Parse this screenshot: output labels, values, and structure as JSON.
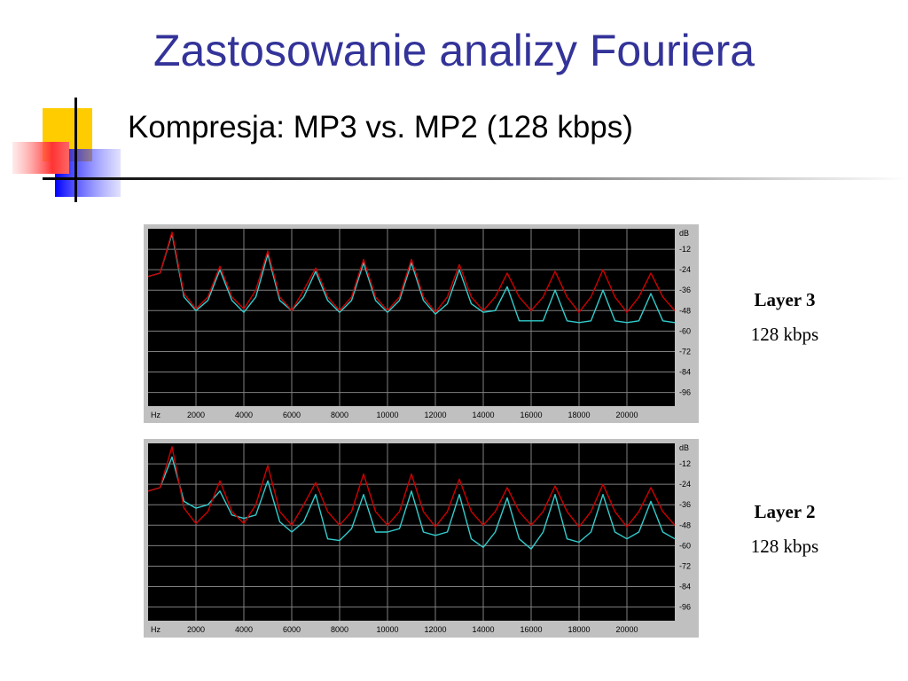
{
  "slide": {
    "title": "Zastosowanie analizy Fouriera",
    "subtitle": "Kompresja: MP3 vs. MP2 (128 kbps)"
  },
  "colors": {
    "title": "#333399",
    "plot_background": "#000000",
    "grid": "#808080",
    "series_original": "#cc0000",
    "series_compressed": "#33cccc",
    "frame": "#c0c0c0"
  },
  "chart_data": [
    {
      "type": "line",
      "layer_label": "Layer 3",
      "bitrate_label": "128 kbps",
      "x_unit_label": "Hz",
      "y_unit_label": "dB",
      "x_ticks": [
        2000,
        4000,
        6000,
        8000,
        10000,
        12000,
        14000,
        16000,
        18000,
        20000
      ],
      "y_ticks": [
        -12,
        -24,
        -36,
        -48,
        -60,
        -72,
        -84,
        -96
      ],
      "xlim": [
        0,
        22000
      ],
      "ylim": [
        -104,
        0
      ],
      "grid": true,
      "series": [
        {
          "x": [
            0,
            500,
            1000,
            1500,
            2000,
            2500,
            3000,
            3500,
            4000,
            4500,
            5000,
            5500,
            6000,
            6500,
            7000,
            7500,
            8000,
            8500,
            9000,
            9500,
            10000,
            10500,
            11000,
            11500,
            12000,
            12500,
            13000,
            13500,
            14000,
            14500,
            15000,
            15500,
            16000,
            16500,
            17000,
            17500,
            18000,
            18500,
            19000,
            19500,
            20000,
            20500,
            21000,
            21500,
            22000
          ],
          "y": [
            -28,
            -26,
            -2,
            -38,
            -47,
            -40,
            -22,
            -40,
            -47,
            -36,
            -13,
            -40,
            -48,
            -36,
            -23,
            -40,
            -48,
            -40,
            -18,
            -40,
            -48,
            -40,
            -18,
            -40,
            -49,
            -40,
            -21,
            -40,
            -48,
            -40,
            -26,
            -40,
            -48,
            -40,
            -25,
            -40,
            -49,
            -40,
            -24,
            -40,
            -49,
            -40,
            -26,
            -40,
            -48
          ]
        },
        {
          "x": [
            0,
            500,
            1000,
            1500,
            2000,
            2500,
            3000,
            3500,
            4000,
            4500,
            5000,
            5500,
            6000,
            6500,
            7000,
            7500,
            8000,
            8500,
            9000,
            9500,
            10000,
            10500,
            11000,
            11500,
            12000,
            12500,
            13000,
            13500,
            14000,
            14500,
            15000,
            15500,
            16000,
            16500,
            17000,
            17500,
            18000,
            18500,
            19000,
            19500,
            20000,
            20500,
            21000,
            21500,
            22000
          ],
          "y": [
            -28,
            -26,
            -3,
            -40,
            -48,
            -42,
            -24,
            -42,
            -49,
            -40,
            -15,
            -42,
            -48,
            -40,
            -25,
            -42,
            -49,
            -42,
            -20,
            -42,
            -49,
            -42,
            -20,
            -42,
            -50,
            -44,
            -24,
            -44,
            -49,
            -48,
            -34,
            -54,
            -54,
            -54,
            -36,
            -54,
            -55,
            -54,
            -36,
            -54,
            -55,
            -54,
            -38,
            -54,
            -55
          ]
        }
      ]
    },
    {
      "type": "line",
      "layer_label": "Layer 2",
      "bitrate_label": "128 kbps",
      "x_unit_label": "Hz",
      "y_unit_label": "dB",
      "x_ticks": [
        2000,
        4000,
        6000,
        8000,
        10000,
        12000,
        14000,
        16000,
        18000,
        20000
      ],
      "y_ticks": [
        -12,
        -24,
        -36,
        -48,
        -60,
        -72,
        -84,
        -96
      ],
      "xlim": [
        0,
        22000
      ],
      "ylim": [
        -104,
        0
      ],
      "grid": true,
      "series": [
        {
          "x": [
            0,
            500,
            1000,
            1500,
            2000,
            2500,
            3000,
            3500,
            4000,
            4500,
            5000,
            5500,
            6000,
            6500,
            7000,
            7500,
            8000,
            8500,
            9000,
            9500,
            10000,
            10500,
            11000,
            11500,
            12000,
            12500,
            13000,
            13500,
            14000,
            14500,
            15000,
            15500,
            16000,
            16500,
            17000,
            17500,
            18000,
            18500,
            19000,
            19500,
            20000,
            20500,
            21000,
            21500,
            22000
          ],
          "y": [
            -28,
            -26,
            -2,
            -38,
            -47,
            -40,
            -22,
            -40,
            -47,
            -36,
            -13,
            -40,
            -48,
            -36,
            -23,
            -40,
            -48,
            -40,
            -18,
            -40,
            -48,
            -40,
            -18,
            -40,
            -49,
            -40,
            -21,
            -40,
            -48,
            -40,
            -26,
            -40,
            -48,
            -40,
            -25,
            -40,
            -49,
            -40,
            -24,
            -40,
            -49,
            -40,
            -26,
            -40,
            -48
          ]
        },
        {
          "x": [
            0,
            500,
            1000,
            1500,
            2000,
            2500,
            3000,
            3500,
            4000,
            4500,
            5000,
            5500,
            6000,
            6500,
            7000,
            7500,
            8000,
            8500,
            9000,
            9500,
            10000,
            10500,
            11000,
            11500,
            12000,
            12500,
            13000,
            13500,
            14000,
            14500,
            15000,
            15500,
            16000,
            16500,
            17000,
            17500,
            18000,
            18500,
            19000,
            19500,
            20000,
            20500,
            21000,
            21500,
            22000
          ],
          "y": [
            -28,
            -26,
            -8,
            -34,
            -38,
            -36,
            -28,
            -42,
            -44,
            -42,
            -22,
            -46,
            -52,
            -46,
            -30,
            -56,
            -57,
            -50,
            -30,
            -52,
            -52,
            -50,
            -28,
            -52,
            -54,
            -52,
            -30,
            -56,
            -61,
            -52,
            -32,
            -56,
            -62,
            -52,
            -30,
            -56,
            -58,
            -52,
            -30,
            -52,
            -56,
            -52,
            -34,
            -52,
            -56
          ]
        }
      ]
    }
  ]
}
